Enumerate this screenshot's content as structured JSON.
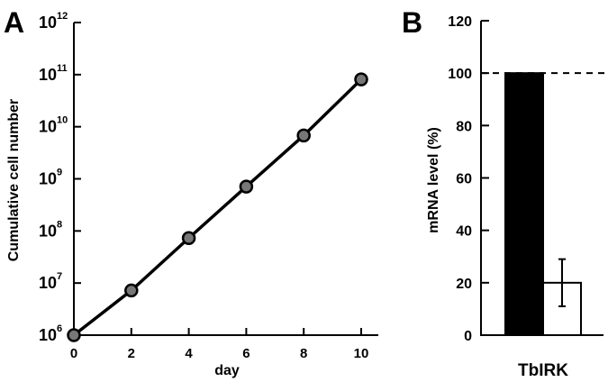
{
  "panel_a": {
    "letter": "A",
    "chart_data": {
      "type": "line",
      "title": "",
      "xlabel": "day",
      "ylabel": "Cumulative cell number",
      "yscale": "log",
      "xlim": [
        0,
        10
      ],
      "ylim": [
        1000000,
        1000000000000
      ],
      "x_ticks": [
        0,
        2,
        4,
        6,
        8,
        10
      ],
      "y_ticks": [
        {
          "base": "10",
          "exp": "6",
          "value": 1000000
        },
        {
          "base": "10",
          "exp": "7",
          "value": 10000000
        },
        {
          "base": "10",
          "exp": "8",
          "value": 100000000
        },
        {
          "base": "10",
          "exp": "9",
          "value": 1000000000
        },
        {
          "base": "10",
          "exp": "10",
          "value": 10000000000
        },
        {
          "base": "10",
          "exp": "11",
          "value": 100000000000
        },
        {
          "base": "10",
          "exp": "12",
          "value": 1000000000000
        }
      ],
      "series": [
        {
          "x": [
            0,
            2,
            4,
            6,
            8,
            10
          ],
          "values": [
            1000000,
            7200000,
            73000000,
            710000000,
            6800000000,
            81000000000
          ]
        }
      ],
      "grid": false,
      "color": "#000000"
    }
  },
  "panel_b": {
    "letter": "B",
    "chart_data": {
      "type": "bar",
      "title": "",
      "xlabel": "TbIRK",
      "ylabel": "mRNA level (%)",
      "ylim": [
        0,
        120
      ],
      "y_ticks": [
        0,
        20,
        40,
        60,
        80,
        100,
        120
      ],
      "reference_line": 100,
      "bars": [
        {
          "value": 100,
          "fill": "#000000",
          "error": null
        },
        {
          "value": 20,
          "fill": "#ffffff",
          "error": [
            11,
            29
          ]
        }
      ],
      "grid": false
    }
  }
}
